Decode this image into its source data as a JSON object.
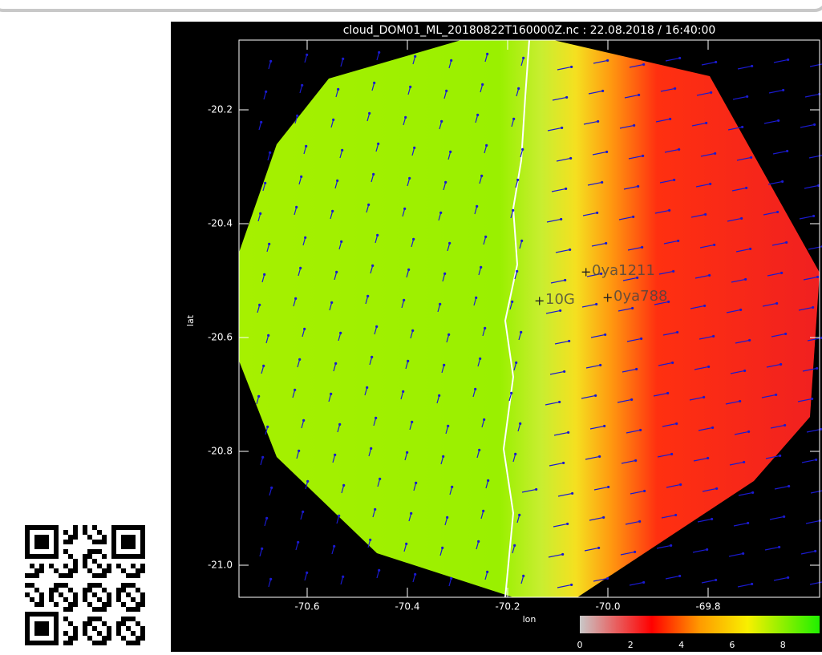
{
  "plot": {
    "title": "cloud_DOM01_ML_20180822T160000Z.nc : 22.08.2018 / 16:40:00",
    "xlabel": "lon",
    "ylabel": "lat",
    "xticks": [
      "-70.6",
      "-70.4",
      "-70.2",
      "-70.0",
      "-69.8"
    ],
    "yticks": [
      "-20.2",
      "-20.4",
      "-20.6",
      "-20.8",
      "-21.0"
    ],
    "stations": [
      "0ya1211",
      "0ya788",
      "10G"
    ],
    "colorbar_ticks": [
      "0",
      "2",
      "4",
      "6",
      "8"
    ]
  }
}
